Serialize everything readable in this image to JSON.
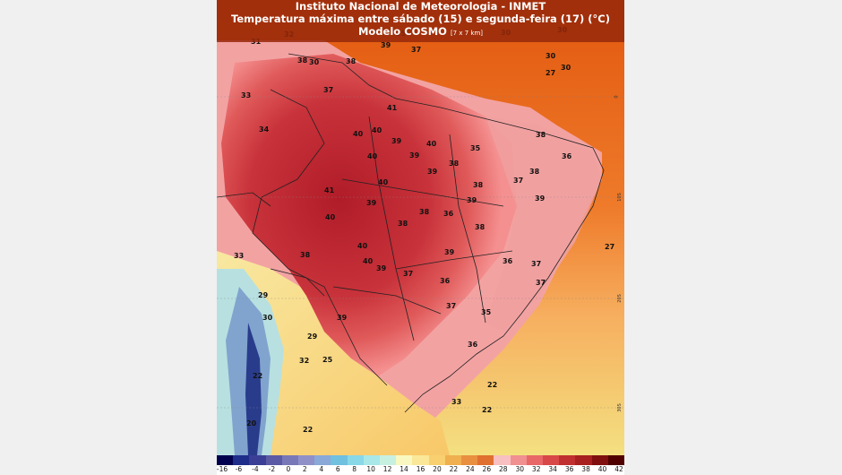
{
  "header": {
    "line1": "Instituto Nacional de Meteorologia - INMET",
    "line2": "Temperatura máxima entre sábado (15) e segunda-feira (17) (°C)",
    "line3": "Modelo COSMO",
    "resolution": "[7 x 7 km]"
  },
  "map_labels": [
    "31",
    "32",
    "30",
    "38",
    "39",
    "35",
    "38",
    "37",
    "33",
    "37",
    "41",
    "34",
    "40",
    "40",
    "39",
    "40",
    "35",
    "40",
    "39",
    "39",
    "38",
    "38",
    "36",
    "38",
    "38",
    "41",
    "40",
    "39",
    "37",
    "39",
    "40",
    "39",
    "38",
    "38",
    "36",
    "38",
    "33",
    "38",
    "40",
    "36",
    "37",
    "40",
    "39",
    "37",
    "36",
    "37",
    "39",
    "37",
    "35",
    "29",
    "30",
    "39",
    "29",
    "32",
    "25",
    "36",
    "33",
    "22",
    "22",
    "22",
    "20",
    "22",
    "30",
    "30",
    "30",
    "30",
    "27",
    "27"
  ],
  "lat_labels": [
    "0",
    "10S",
    "20S",
    "30S"
  ],
  "colorbar": {
    "colors": [
      "#00004f",
      "#1e2d8a",
      "#3a3f95",
      "#5a5aa5",
      "#7878b8",
      "#9090c8",
      "#8aa8d8",
      "#70c0e0",
      "#88d8e8",
      "#a8e8e8",
      "#c8f0e0",
      "#f8f8c0",
      "#fae898",
      "#f8d070",
      "#f0b050",
      "#e89040",
      "#e07030",
      "#f8c0c0",
      "#f09090",
      "#e86868",
      "#d84848",
      "#c03030",
      "#a82020",
      "#801010",
      "#500000"
    ],
    "ticks": [
      "-16",
      "-6",
      "-4",
      "-2",
      "0",
      "2",
      "4",
      "6",
      "8",
      "10",
      "12",
      "14",
      "16",
      "20",
      "22",
      "24",
      "26",
      "28",
      "30",
      "32",
      "34",
      "36",
      "38",
      "40",
      "42"
    ]
  }
}
